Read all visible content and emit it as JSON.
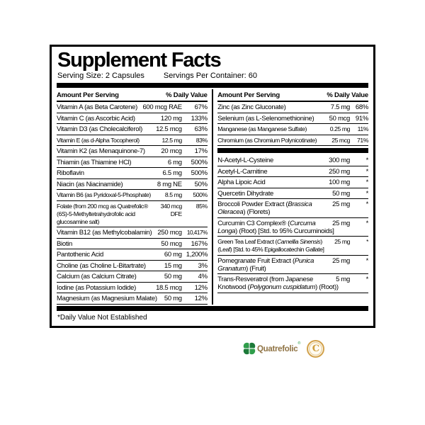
{
  "label": {
    "title": "Supplement Facts",
    "serving_size": "Serving Size: 2 Capsules",
    "servings_per_container": "Servings Per Container: 60",
    "column_header": {
      "amount": "Amount Per Serving",
      "dv": "% Daily Value"
    },
    "footnote": "*Daily Value Not Established",
    "left_rows": [
      {
        "name": "Vitamin A (as Beta Carotene)",
        "amt": "600 mcg RAE",
        "dv": "67%"
      },
      {
        "name": "Vitamin C (as Ascorbic Acid)",
        "amt": "120 mg",
        "dv": "133%"
      },
      {
        "name": "Vitamin D3 (as Cholecalciferol)",
        "amt": "12.5 mcg",
        "dv": "63%"
      },
      {
        "name": "Vitamin E (as d-Alpha Tocopherol)",
        "amt": "12.5 mg",
        "dv": "83%",
        "condensed": true
      },
      {
        "name": "Vitamin K2 (as Menaquinone-7)",
        "amt": "20 mcg",
        "dv": "17%"
      },
      {
        "name": "Thiamin (as Thiamine HCl)",
        "amt": "6 mg",
        "dv": "500%"
      },
      {
        "name": "Riboflavin",
        "amt": "6.5 mg",
        "dv": "500%"
      },
      {
        "name": "Niacin (as Niacinamide)",
        "amt": "8 mg NE",
        "dv": "50%"
      },
      {
        "name": "Vitamin B6 (as Pyridoxal-5-Phosphate)",
        "amt": "8.5 mg",
        "dv": "500%",
        "condensed": true
      },
      {
        "name": "Folate (from 200 mcg as Quatrefolic® (6S)-5-Methyltetrahydrofolic acid glucosamine salt)",
        "amt": "340 mcg\nDFE",
        "dv": "85%",
        "wrap": true,
        "condensed": true
      },
      {
        "name": "Vitamin B12 (as Methylcobalamin)",
        "amt": "250 mcg",
        "dv": "10,417%",
        "dv_small": true
      },
      {
        "name": "Biotin",
        "amt": "50 mcg",
        "dv": "167%"
      },
      {
        "name": "Pantothenic Acid",
        "amt": "60 mg",
        "dv": "1,200%"
      },
      {
        "name": "Choline (as Choline L-Bitartrate)",
        "amt": "15 mg",
        "dv": "3%"
      },
      {
        "name": "Calcium (as Calcium Citrate)",
        "amt": "50 mg",
        "dv": "4%"
      },
      {
        "name": "Iodine (as Potassium Iodide)",
        "amt": "18.5 mcg",
        "dv": "12%"
      },
      {
        "name": "Magnesium (as Magnesium Malate)",
        "amt": "50 mg",
        "dv": "12%"
      }
    ],
    "right_mineral_rows": [
      {
        "name": "Zinc (as Zinc Gluconate)",
        "amt": "7.5 mg",
        "dv": "68%"
      },
      {
        "name": "Selenium (as L-Selenomethionine)",
        "amt": "50 mcg",
        "dv": "91%"
      },
      {
        "name": "Manganese (as Manganese Sulfate)",
        "amt": "0.25 mg",
        "dv": "11%",
        "condensed": true
      },
      {
        "name": "Chromium (as Chromium Polynicotinate)",
        "amt": "25 mcg",
        "dv": "71%",
        "condensed": true
      }
    ],
    "right_other_rows": [
      {
        "name": "N-Acetyl-L-Cysteine",
        "amt": "300 mg",
        "dv": "*"
      },
      {
        "name": "Acetyl-L-Carnitine",
        "amt": "250 mg",
        "dv": "*"
      },
      {
        "name": "Alpha Lipoic Acid",
        "amt": "100 mg",
        "dv": "*"
      },
      {
        "name": "Quercetin Dihydrate",
        "amt": "50 mg",
        "dv": "*"
      },
      {
        "name": "Broccoli Powder Extract (*Brassica Oleracea*) (Florets)",
        "amt": "25 mg",
        "dv": "*",
        "wrap": true
      },
      {
        "name": "Curcumin C3 Complex® (*Curcuma Longa*) (Root) [Std. to 95% Curcuminoids]",
        "amt": "25 mg",
        "dv": "*",
        "wrap": true
      },
      {
        "name": "Green Tea Leaf Extract (*Camellia Sinensis*) (Leaf) [Std. to 45% Epigallocatechin Gallate]",
        "amt": "25 mg",
        "dv": "*",
        "wrap": true,
        "condensed": true
      },
      {
        "name": "Pomegranate Fruit Extract (*Punica Granatum*) (Fruit)",
        "amt": "25 mg",
        "dv": "*",
        "wrap": true
      },
      {
        "name": "Trans-Resveratrol (from Japanese Knotwood (*Polygonum cuspidatum*) (Root))",
        "amt": "5 mg",
        "dv": "*",
        "wrap": true
      }
    ]
  },
  "logos": {
    "quatrefolic_wordmark": "Quatrefolic",
    "registered_mark": "®",
    "c3_letter": "C",
    "colors": {
      "clover_green_light": "#2f9e4b",
      "clover_green_dark": "#1d7a39",
      "wordmark_tan": "#8f7344",
      "seal_gold": "#d2a14a"
    }
  }
}
